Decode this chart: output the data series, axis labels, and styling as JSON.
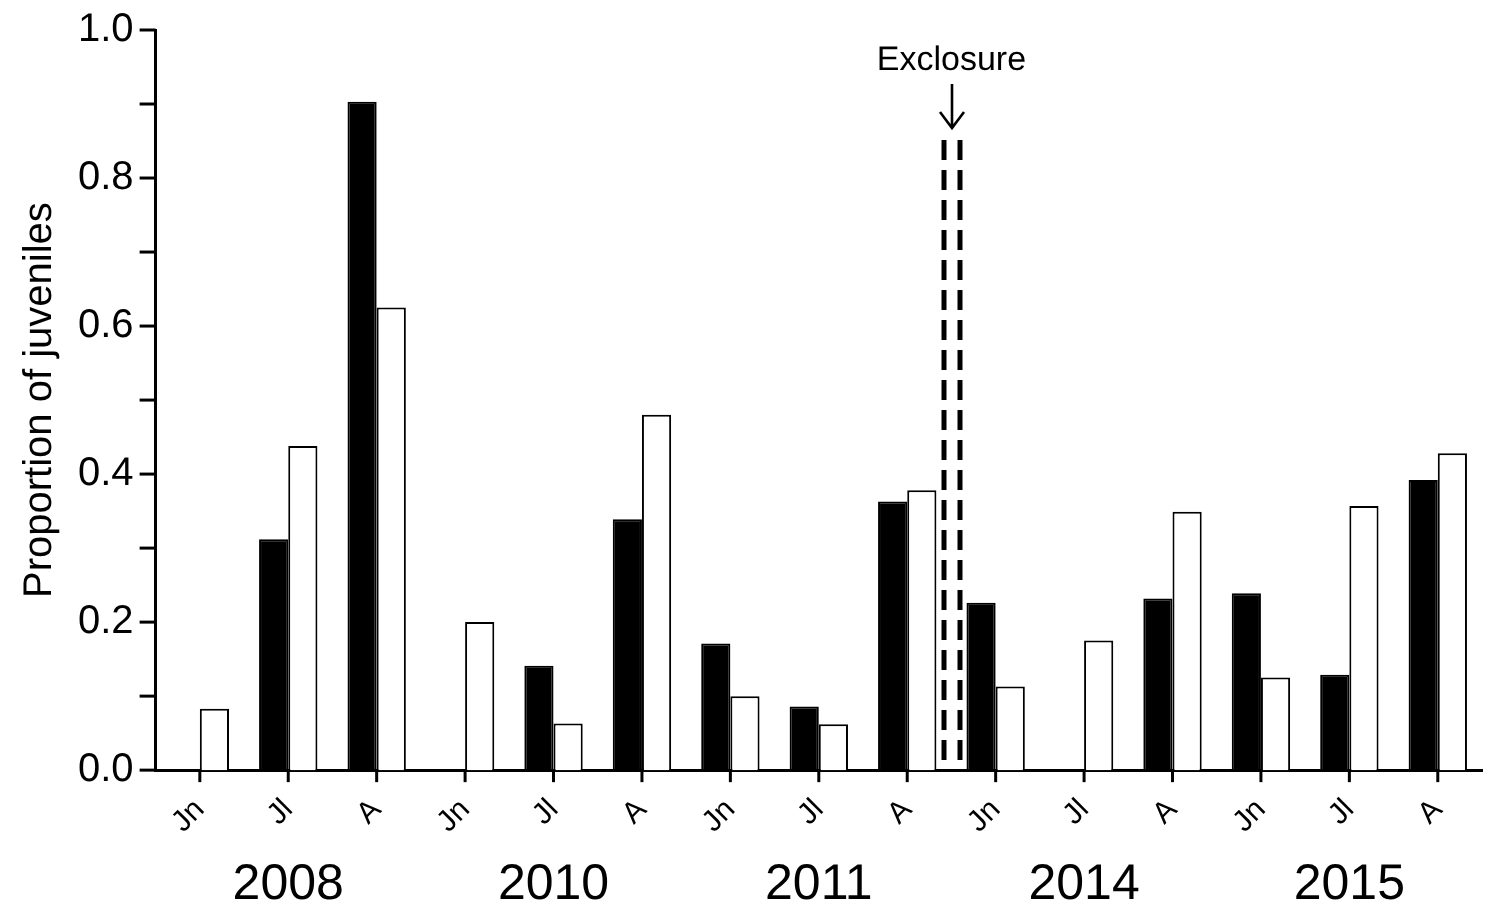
{
  "chart_data": {
    "type": "bar",
    "ylabel": "Proportion of juveniles",
    "categories": [
      "Jn",
      "Jl",
      "A",
      "Jn",
      "Jl",
      "A",
      "Jn",
      "Jl",
      "A",
      "Jn",
      "Jl",
      "A",
      "Jn",
      "Jl",
      "A"
    ],
    "series": [
      {
        "color": "#000000",
        "values": [
          null,
          0.312,
          0.903,
          null,
          0.141,
          0.339,
          0.171,
          0.086,
          0.363,
          0.226,
          null,
          0.232,
          0.239,
          0.129,
          0.392
        ]
      },
      {
        "color": "#ffffff",
        "values": [
          0.083,
          0.438,
          0.625,
          0.2,
          0.063,
          0.48,
          0.1,
          0.062,
          0.378,
          0.113,
          0.175,
          0.349,
          0.125,
          0.357,
          0.428
        ]
      }
    ],
    "ylim": [
      0,
      1
    ],
    "yticks": [
      {
        "value": 0,
        "label": "0.0"
      },
      {
        "value": 0.1,
        "label": null
      },
      {
        "value": 0.2,
        "label": "0.2"
      },
      {
        "value": 0.3,
        "label": null
      },
      {
        "value": 0.4,
        "label": "0.4"
      },
      {
        "value": 0.5,
        "label": null
      },
      {
        "value": 0.6,
        "label": "0.6"
      },
      {
        "value": 0.7,
        "label": null
      },
      {
        "value": 0.8,
        "label": "0.8"
      },
      {
        "value": 0.9,
        "label": null
      },
      {
        "value": 1,
        "label": "1.0"
      }
    ],
    "annotations": [
      "2008",
      "2010",
      "2011",
      "2014",
      "2015",
      "Exclosure"
    ],
    "legend": false
  }
}
